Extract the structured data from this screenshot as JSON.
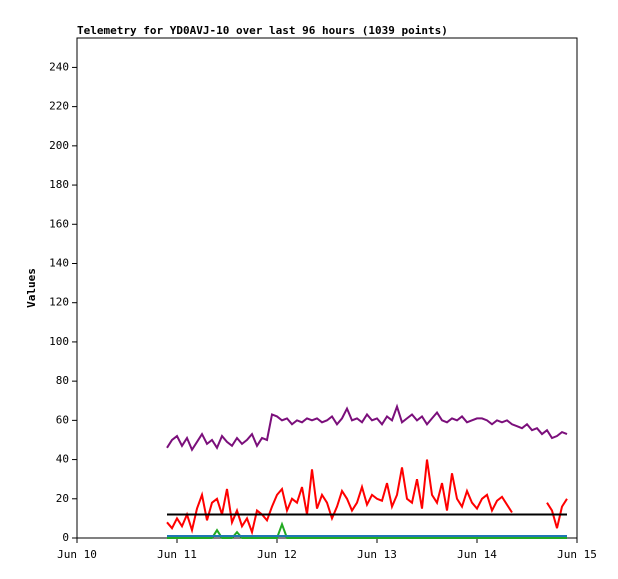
{
  "chart_data": {
    "type": "line",
    "title": "Telemetry for YD0AVJ-10 over last 96 hours (1039 points)",
    "y_label": "Values",
    "xlim": [
      10,
      15
    ],
    "xticks": [
      {
        "value": 10,
        "label": "Jun 10"
      },
      {
        "value": 11,
        "label": "Jun 11"
      },
      {
        "value": 12,
        "label": "Jun 12"
      },
      {
        "value": 13,
        "label": "Jun 13"
      },
      {
        "value": 14,
        "label": "Jun 14"
      },
      {
        "value": 15,
        "label": "Jun 15"
      }
    ],
    "ylim": [
      0,
      255
    ],
    "yticks": [
      0,
      20,
      40,
      60,
      80,
      100,
      120,
      140,
      160,
      180,
      200,
      220,
      240
    ],
    "x": [
      10.9,
      10.95,
      11,
      11.05,
      11.1,
      11.15,
      11.2,
      11.25,
      11.3,
      11.35,
      11.4,
      11.45,
      11.5,
      11.55,
      11.6,
      11.65,
      11.7,
      11.75,
      11.8,
      11.85,
      11.9,
      11.95,
      12,
      12.05,
      12.1,
      12.15,
      12.2,
      12.25,
      12.3,
      12.35,
      12.4,
      12.45,
      12.5,
      12.55,
      12.6,
      12.65,
      12.7,
      12.75,
      12.8,
      12.85,
      12.9,
      12.95,
      13,
      13.05,
      13.1,
      13.15,
      13.2,
      13.25,
      13.3,
      13.35,
      13.4,
      13.45,
      13.5,
      13.55,
      13.6,
      13.65,
      13.7,
      13.75,
      13.8,
      13.85,
      13.9,
      13.95,
      14,
      14.05,
      14.1,
      14.15,
      14.2,
      14.25,
      14.3,
      14.35,
      14.4,
      14.45,
      14.5,
      14.55,
      14.6,
      14.65,
      14.7,
      14.75,
      14.8,
      14.85,
      14.9
    ],
    "series": [
      {
        "color": "#7b0f7b",
        "values": [
          46,
          50,
          52,
          47,
          51,
          45,
          49,
          53,
          48,
          50,
          46,
          52,
          49,
          47,
          51,
          48,
          50,
          53,
          47,
          51,
          50,
          63,
          62,
          60,
          61,
          58,
          60,
          59,
          61,
          60,
          61,
          59,
          60,
          62,
          58,
          61,
          66,
          60,
          61,
          59,
          63,
          60,
          61,
          58,
          62,
          60,
          67,
          59,
          61,
          63,
          60,
          62,
          58,
          61,
          64,
          60,
          59,
          61,
          60,
          62,
          59,
          60,
          61,
          61,
          60,
          58,
          60,
          59,
          60,
          58,
          57,
          56,
          58,
          55,
          56,
          53,
          55,
          51,
          52,
          54,
          53
        ]
      },
      {
        "color": "#ff0000",
        "values": [
          8,
          5,
          10,
          6,
          12,
          4,
          15,
          22,
          9,
          18,
          20,
          12,
          25,
          8,
          14,
          6,
          10,
          3,
          14,
          12,
          9,
          16,
          22,
          25,
          14,
          20,
          18,
          26,
          12,
          35,
          15,
          22,
          18,
          10,
          16,
          24,
          20,
          14,
          18,
          26,
          17,
          22,
          20,
          19,
          28,
          16,
          22,
          36,
          20,
          18,
          30,
          15,
          40,
          22,
          18,
          28,
          14,
          33,
          20,
          16,
          24,
          18,
          15,
          20,
          22,
          14,
          19,
          21,
          17,
          13,
          null,
          null,
          null,
          null,
          null,
          null,
          18,
          14,
          5,
          16,
          20
        ]
      },
      {
        "color": "#000000",
        "values": [
          12,
          12,
          12,
          12,
          12,
          12,
          12,
          12,
          12,
          12,
          12,
          12,
          12,
          12,
          12,
          12,
          12,
          12,
          12,
          12,
          12,
          12,
          12,
          12,
          12,
          12,
          12,
          12,
          12,
          12,
          12,
          12,
          12,
          12,
          12,
          12,
          12,
          12,
          12,
          12,
          12,
          12,
          12,
          12,
          12,
          12,
          12,
          12,
          12,
          12,
          12,
          12,
          12,
          12,
          12,
          12,
          12,
          12,
          12,
          12,
          12,
          12,
          12,
          12,
          12,
          12,
          12,
          12,
          12,
          12,
          12,
          12,
          12,
          12,
          12,
          12,
          12,
          12,
          12,
          12,
          12
        ]
      },
      {
        "color": "#22aa22",
        "values": [
          0,
          0,
          0,
          0,
          0,
          0,
          0,
          0,
          0,
          0,
          4,
          0,
          0,
          0,
          3,
          0,
          0,
          0,
          0,
          0,
          0,
          0,
          0,
          7,
          0,
          0,
          0,
          0,
          0,
          0,
          0,
          0,
          0,
          0,
          0,
          0,
          0,
          0,
          0,
          0,
          0,
          0,
          0,
          0,
          0,
          0,
          0,
          0,
          0,
          0,
          0,
          0,
          0,
          0,
          0,
          0,
          0,
          0,
          0,
          0,
          0,
          0,
          0,
          0,
          0,
          0,
          0,
          0,
          0,
          0,
          0,
          0,
          0,
          0,
          0,
          0,
          0,
          0,
          0,
          0,
          0
        ]
      },
      {
        "color": "#1f77b4",
        "values": [
          1,
          1,
          1,
          1,
          1,
          1,
          1,
          1,
          1,
          1,
          1,
          1,
          1,
          1,
          1,
          1,
          1,
          1,
          1,
          1,
          1,
          1,
          1,
          1,
          1,
          1,
          1,
          1,
          1,
          1,
          1,
          1,
          1,
          1,
          1,
          1,
          1,
          1,
          1,
          1,
          1,
          1,
          1,
          1,
          1,
          1,
          1,
          1,
          1,
          1,
          1,
          1,
          1,
          1,
          1,
          1,
          1,
          1,
          1,
          1,
          1,
          1,
          1,
          1,
          1,
          1,
          1,
          1,
          1,
          1,
          1,
          1,
          1,
          1,
          1,
          1,
          1,
          1,
          1,
          1,
          1
        ]
      }
    ]
  }
}
